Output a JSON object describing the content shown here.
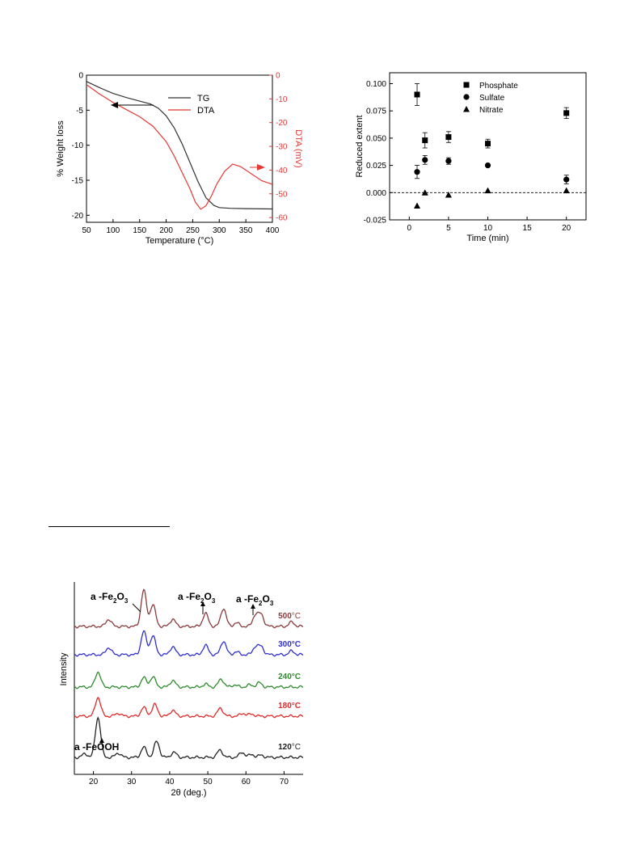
{
  "colors": {
    "tg": "#333333",
    "dta": "#e53935",
    "xrd_500": "#8b3a3a",
    "xrd_300": "#2f2fd0",
    "xrd_240": "#2e8b2e",
    "xrd_180": "#e02a2a",
    "xrd_120": "#222222"
  },
  "chart_data": [
    {
      "type": "line",
      "xlabel": "Temperature (°C)",
      "ylabel": "% Weight loss",
      "y2label": "DTA (mV)",
      "xlim": [
        50,
        400
      ],
      "ylim": [
        -21,
        0
      ],
      "y2lim": [
        -62,
        0
      ],
      "xticks": [
        50,
        100,
        150,
        200,
        250,
        300,
        350,
        400
      ],
      "yticks": [
        0,
        -5,
        -10,
        -15,
        -20
      ],
      "y2ticks": [
        0,
        -10,
        -20,
        -30,
        -40,
        -50,
        -60
      ],
      "legend": "top-right",
      "series": [
        {
          "name": "TG",
          "axis": "left",
          "color": "#333333",
          "x": [
            50,
            75,
            100,
            125,
            150,
            170,
            185,
            200,
            215,
            230,
            245,
            260,
            275,
            290,
            300,
            320,
            350,
            400
          ],
          "y": [
            -0.9,
            -1.8,
            -2.6,
            -3.2,
            -3.7,
            -4.1,
            -4.7,
            -5.8,
            -7.5,
            -9.8,
            -12.5,
            -15.2,
            -17.5,
            -18.6,
            -18.9,
            -19.0,
            -19.05,
            -19.1
          ]
        },
        {
          "name": "DTA",
          "axis": "right",
          "color": "#e53935",
          "x": [
            50,
            75,
            100,
            125,
            150,
            175,
            200,
            215,
            230,
            245,
            255,
            265,
            275,
            285,
            295,
            310,
            325,
            340,
            360,
            380,
            400
          ],
          "y": [
            -4,
            -8,
            -11.5,
            -14.5,
            -17.5,
            -21.5,
            -28,
            -34,
            -41,
            -48,
            -53.5,
            -56.5,
            -55,
            -51,
            -46,
            -40.5,
            -37.5,
            -38.5,
            -41.5,
            -44.5,
            -46
          ]
        }
      ]
    },
    {
      "type": "scatter",
      "xlabel": "Time (min)",
      "ylabel": "Reduced extent",
      "xlim": [
        -2.5,
        22.5
      ],
      "ylim": [
        -0.025,
        0.11
      ],
      "xticks": [
        0,
        5,
        10,
        15,
        20
      ],
      "yticks": [
        0.1,
        0.075,
        0.05,
        0.025,
        0.0,
        -0.025
      ],
      "ytick_labels": [
        "0.100",
        "0.075",
        "0.050",
        "0.025",
        "0.000",
        "-0.025"
      ],
      "reference_line": 0.0,
      "legend": "top-right",
      "series": [
        {
          "name": "Phosphate",
          "marker": "square",
          "x": [
            1,
            2,
            5,
            10,
            20
          ],
          "y": [
            0.09,
            0.048,
            0.051,
            0.045,
            0.073
          ],
          "err": [
            0.01,
            0.007,
            0.005,
            0.004,
            0.005
          ]
        },
        {
          "name": "Sulfate",
          "marker": "circle",
          "x": [
            1,
            2,
            5,
            10,
            20
          ],
          "y": [
            0.019,
            0.03,
            0.029,
            0.025,
            0.012
          ],
          "err": [
            0.006,
            0.004,
            0.003,
            0.0,
            0.004
          ]
        },
        {
          "name": "Nitrate",
          "marker": "triangle",
          "x": [
            1,
            2,
            5,
            10,
            20
          ],
          "y": [
            -0.012,
            0.0,
            -0.002,
            0.002,
            0.002
          ],
          "err": [
            0,
            0,
            0,
            0,
            0
          ]
        }
      ]
    },
    {
      "type": "line",
      "xlabel": "2θ (deg.)",
      "ylabel": "Intensity",
      "xlim": [
        15,
        75
      ],
      "xticks": [
        20,
        30,
        40,
        50,
        60,
        70
      ],
      "annotations": [
        {
          "text": "a -Fe",
          "sub": "2",
          "mid": "O",
          "sub2": "3",
          "x": 31
        },
        {
          "text": "a -Fe",
          "sub": "2",
          "mid": "O",
          "sub2": "3",
          "x": 49
        },
        {
          "text": "a -Fe",
          "sub": "2",
          "mid": "O",
          "sub2": "3",
          "x": 63
        },
        {
          "text": "a -FeOOH",
          "x": 21
        }
      ],
      "series": [
        {
          "name": "500°C",
          "temp_num": "500",
          "unit": "°C",
          "color": "#8b3a3a",
          "peaks": [
            [
              24,
              1.0
            ],
            [
              33.2,
              5.0
            ],
            [
              35.6,
              3.0
            ],
            [
              40.8,
              1.0
            ],
            [
              49.4,
              1.8
            ],
            [
              54.1,
              2.5
            ],
            [
              57.5,
              0.5
            ],
            [
              62.5,
              1.6
            ],
            [
              64,
              1.6
            ],
            [
              72,
              0.6
            ]
          ]
        },
        {
          "name": "300°C",
          "temp_num": "300",
          "unit": "°C",
          "color": "#2f2fd0",
          "peaks": [
            [
              24,
              1.0
            ],
            [
              33.2,
              3.2
            ],
            [
              35.6,
              2.6
            ],
            [
              40.8,
              1.1
            ],
            [
              49.4,
              1.3
            ],
            [
              54.1,
              1.9
            ],
            [
              57.5,
              0.4
            ],
            [
              62.5,
              1.1
            ],
            [
              64,
              1.1
            ],
            [
              72,
              0.5
            ]
          ]
        },
        {
          "name": "240°C",
          "temp_num": "240",
          "unit": "°C",
          "color": "#2e8b2e",
          "peaks": [
            [
              21.2,
              2.1
            ],
            [
              33.2,
              1.3
            ],
            [
              35.6,
              1.4
            ],
            [
              40.8,
              0.9
            ],
            [
              49.4,
              0.4
            ],
            [
              53.5,
              1.1
            ],
            [
              57,
              0.3
            ],
            [
              61,
              0.3
            ],
            [
              63.5,
              0.6
            ]
          ]
        },
        {
          "name": "180°C",
          "temp_num": "180",
          "unit": "°C",
          "color": "#e02a2a",
          "peaks": [
            [
              21.2,
              2.6
            ],
            [
              26.5,
              0.4
            ],
            [
              33.2,
              1.2
            ],
            [
              36.1,
              1.6
            ],
            [
              40.8,
              0.8
            ],
            [
              53.3,
              1.1
            ],
            [
              59.2,
              0.4
            ],
            [
              61.5,
              0.3
            ]
          ]
        },
        {
          "name": "120°C",
          "temp_num": "120",
          "unit": "°C",
          "color": "#222222",
          "peaks": [
            [
              17.8,
              0.5
            ],
            [
              21.2,
              5.5
            ],
            [
              26.5,
              0.6
            ],
            [
              33.2,
              1.4
            ],
            [
              36.6,
              2.2
            ],
            [
              41.1,
              0.7
            ],
            [
              53.2,
              1.0
            ],
            [
              59,
              0.7
            ],
            [
              61.5,
              0.4
            ],
            [
              64,
              0.3
            ]
          ]
        }
      ]
    }
  ]
}
